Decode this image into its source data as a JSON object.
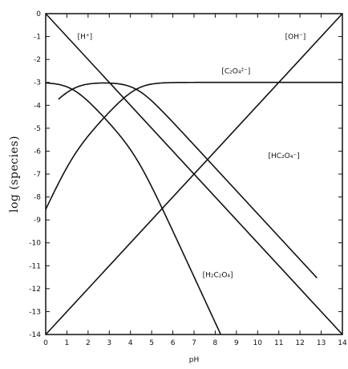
{
  "chart_data": {
    "type": "line",
    "xlabel": "pH",
    "ylabel": "log (species)",
    "xlim": [
      0,
      14
    ],
    "ylim": [
      -14,
      0
    ],
    "grid": false,
    "x_ticks": [
      "0",
      "1",
      "2",
      "3",
      "4",
      "5",
      "6",
      "7",
      "8",
      "9",
      "10",
      "11",
      "12",
      "13",
      "14"
    ],
    "y_ticks": [
      "0",
      "-1",
      "-2",
      "-3",
      "-4",
      "-5",
      "-6",
      "-7",
      "-8",
      "-9",
      "-10",
      "-11",
      "-12",
      "-13",
      "-14"
    ],
    "constants": {
      "pKa1": 1.25,
      "pKa2": 4.27,
      "log_total": -3.0
    },
    "series": [
      {
        "name": "[H⁺]",
        "x": [
          0,
          14
        ],
        "y": [
          0,
          -14
        ]
      },
      {
        "name": "[OH⁻]",
        "x": [
          0,
          14
        ],
        "y": [
          -14,
          0
        ]
      },
      {
        "name": "[C₂O₄²⁻]",
        "x_range": [
          0,
          14
        ]
      },
      {
        "name": "[HC₂O₄⁻]",
        "x_range": [
          0.6,
          12.8
        ]
      },
      {
        "name": "[H₂C₂O₄]",
        "x_range": [
          0,
          10.2
        ]
      }
    ],
    "annotations": [
      {
        "text": "[H⁺]",
        "at": [
          1.5,
          -1.1
        ]
      },
      {
        "text": "[OH⁻]",
        "at": [
          11.3,
          -1.1
        ]
      },
      {
        "text": "[C₂O₄²⁻]",
        "at": [
          8.3,
          -2.6
        ]
      },
      {
        "text": "[HC₂O₄⁻]",
        "at": [
          10.5,
          -6.3
        ]
      },
      {
        "text": "[H₂C₂O₄]",
        "at": [
          7.4,
          -11.5
        ]
      }
    ]
  }
}
